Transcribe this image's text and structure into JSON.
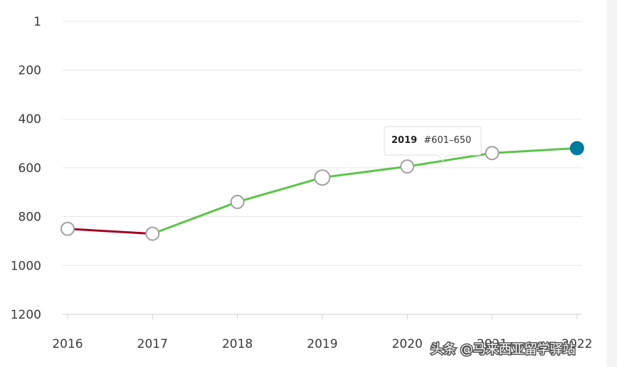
{
  "chart_data": {
    "type": "line",
    "title": "",
    "xlabel": "",
    "ylabel": "",
    "y_reversed": true,
    "ylim": [
      1,
      1200
    ],
    "grid": true,
    "x": [
      "2016",
      "2017",
      "2018",
      "2019",
      "2020",
      "2021",
      "2022"
    ],
    "y_ticks": [
      "1",
      "200",
      "400",
      "600",
      "800",
      "1000",
      "1200"
    ],
    "y_tick_values": [
      1,
      200,
      400,
      600,
      800,
      1000,
      1200
    ],
    "values": [
      850,
      870,
      740,
      640,
      595,
      540,
      520
    ],
    "segment_colors": [
      "#a50024",
      "#5cc44a",
      "#5cc44a",
      "#5cc44a",
      "#5cc44a",
      "#5cc44a"
    ],
    "highlight_index": 6,
    "highlight_color": "#007b9e",
    "tooltip": {
      "index": 3,
      "year": "2019",
      "value": "#601–650"
    }
  },
  "watermark": "头条 @马来西亚留学驿站"
}
